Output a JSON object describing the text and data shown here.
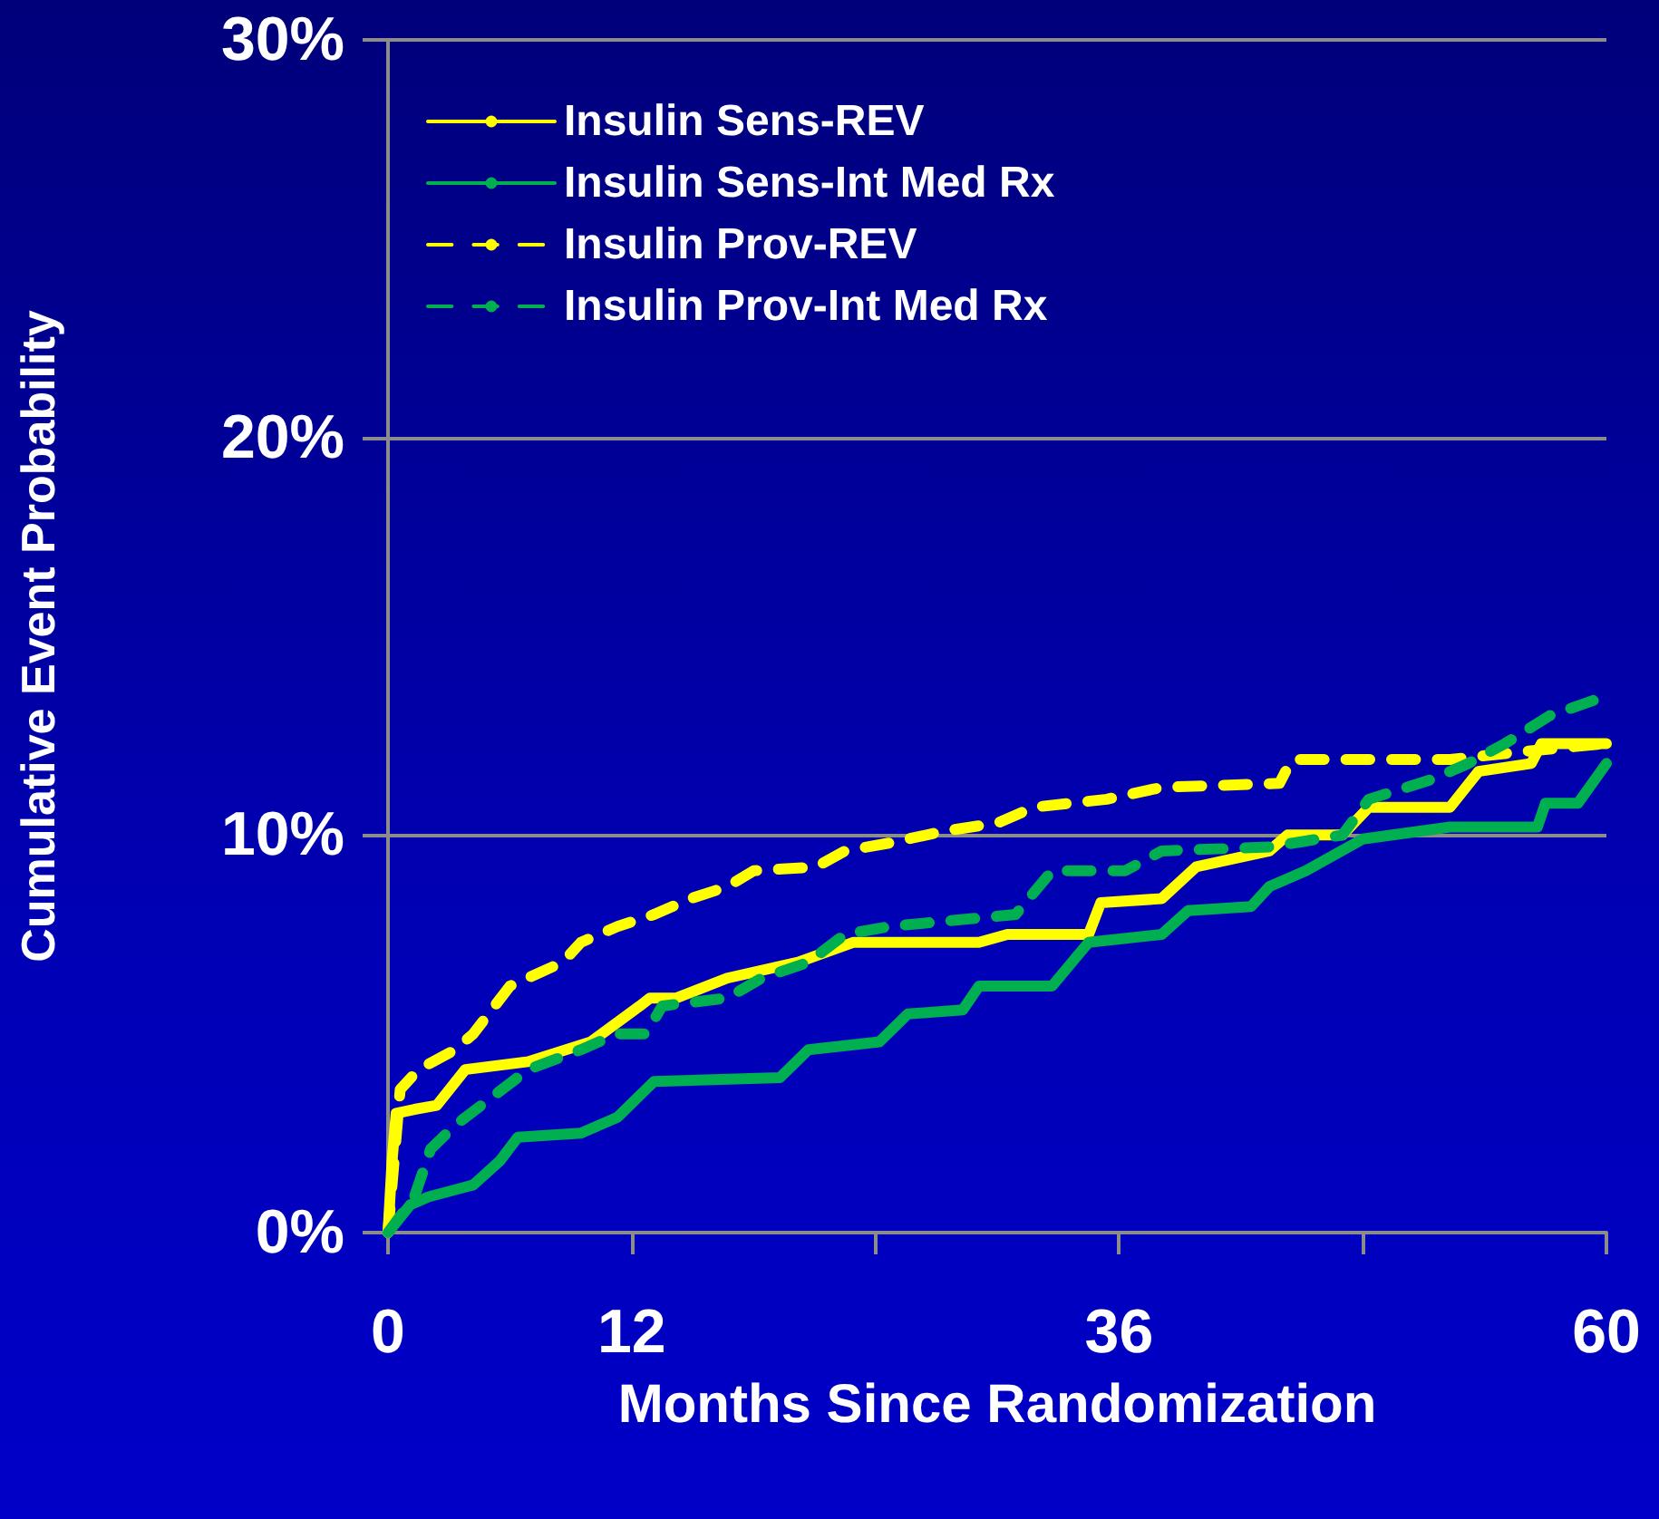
{
  "chart_data": {
    "type": "line",
    "xlabel": "Months Since Randomization",
    "ylabel": "Cumulative Event Probability",
    "xlim": [
      0,
      60
    ],
    "xticks": [
      0,
      12,
      {
        "value": 24,
        "label": null
      },
      36,
      {
        "value": 48,
        "label": null
      },
      60
    ],
    "ylim": [
      0,
      30
    ],
    "yticks": [
      {
        "value": 0,
        "label": "0%"
      },
      {
        "value": 10,
        "label": "10%"
      },
      {
        "value": 20,
        "label": "20%"
      },
      {
        "value": 30,
        "label": "30%"
      }
    ],
    "grid": "y",
    "legend": "top left",
    "marker": "none",
    "series": [
      {
        "name": "Insulin Sens-REV",
        "color": "#ffff00",
        "line_style": "solid",
        "x": [
          0,
          0.2,
          0.4,
          1.3,
          2.4,
          3.8,
          6.9,
          10,
          12.4,
          12.9,
          14.2,
          16.7,
          20.2,
          22.9,
          29.1,
          30.5,
          34.5,
          35.1,
          38.1,
          39.8,
          43.4,
          44.3,
          47,
          48.3,
          52.3,
          53.7,
          56.3,
          56.8,
          60
        ],
        "values": [
          0,
          1.8,
          3.0,
          3.1,
          3.2,
          4.1,
          4.3,
          4.8,
          5.7,
          5.9,
          5.9,
          6.4,
          6.8,
          7.3,
          7.3,
          7.5,
          7.5,
          8.3,
          8.4,
          9.2,
          9.6,
          10.0,
          10.0,
          10.7,
          10.7,
          11.6,
          11.8,
          12.3,
          12.3
        ]
      },
      {
        "name": "Insulin Sens-Int Med Rx",
        "color": "#00b050",
        "line_style": "solid",
        "x": [
          0,
          1.1,
          2,
          4.2,
          5.5,
          6.4,
          9.5,
          11.3,
          13.1,
          19.3,
          20.7,
          24.2,
          25.6,
          28.3,
          29.1,
          32.7,
          34.5,
          38.1,
          39.4,
          42.5,
          43.4,
          45.2,
          48,
          52.3,
          56.6,
          57,
          58.6,
          60
        ],
        "values": [
          0,
          0.7,
          0.9,
          1.2,
          1.8,
          2.4,
          2.5,
          2.9,
          3.8,
          3.9,
          4.6,
          4.8,
          5.5,
          5.6,
          6.2,
          6.2,
          7.3,
          7.5,
          8.1,
          8.2,
          8.7,
          9.1,
          9.9,
          10.2,
          10.2,
          10.8,
          10.8,
          11.8
        ]
      },
      {
        "name": "Insulin Prov-REV",
        "color": "#ffff00",
        "line_style": "dashed",
        "x": [
          0,
          0.6,
          1.5,
          3.3,
          4.2,
          6,
          8.6,
          9.5,
          11.3,
          13.1,
          14.9,
          16.7,
          18,
          21.1,
          22.5,
          24.7,
          27.4,
          30,
          31.8,
          35.4,
          38.1,
          43.9,
          44.5,
          52.3,
          55.9,
          60
        ],
        "values": [
          0,
          3.6,
          4.1,
          4.6,
          5.0,
          6.2,
          6.8,
          7.3,
          7.7,
          8.0,
          8.4,
          8.7,
          9.1,
          9.2,
          9.6,
          9.8,
          10.1,
          10.3,
          10.7,
          10.9,
          11.2,
          11.3,
          11.9,
          11.9,
          12.1,
          12.3
        ]
      },
      {
        "name": "Insulin Prov-Int Med Rx",
        "color": "#00b050",
        "line_style": "dashed",
        "x": [
          0,
          1.3,
          2.1,
          3.3,
          5.1,
          6.9,
          9.5,
          11.3,
          12.7,
          13.5,
          16.7,
          18.4,
          20.7,
          22.5,
          24.7,
          30.9,
          32.7,
          36.3,
          38.1,
          43.4,
          47,
          48.3,
          51.4,
          53.2,
          55,
          57.2,
          60
        ],
        "values": [
          0,
          0.9,
          2.1,
          2.7,
          3.4,
          4.1,
          4.6,
          5.0,
          5.0,
          5.7,
          5.9,
          6.4,
          6.8,
          7.5,
          7.7,
          8.0,
          9.1,
          9.1,
          9.6,
          9.7,
          10.0,
          10.9,
          11.4,
          11.8,
          12.3,
          13.0,
          13.5
        ]
      }
    ]
  }
}
